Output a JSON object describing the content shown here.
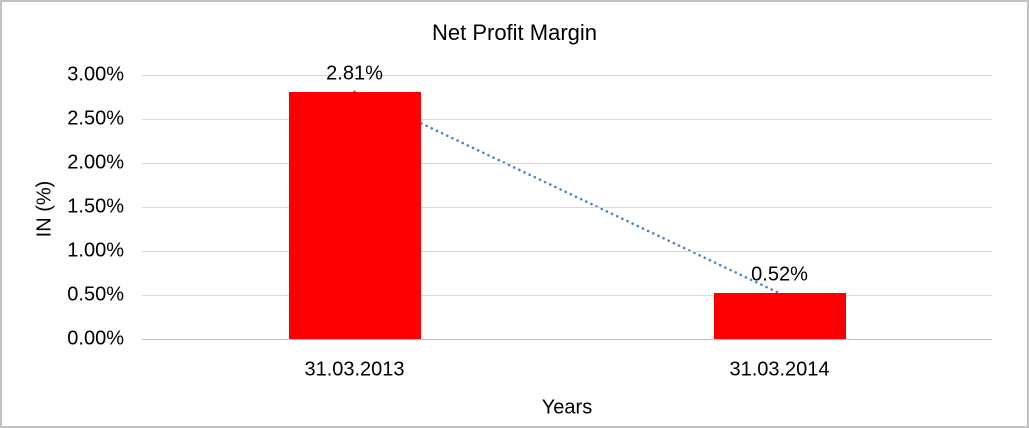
{
  "chart_data": {
    "type": "bar",
    "title": "Net Profit Margin",
    "xlabel": "Years",
    "ylabel": "IN (%)",
    "categories": [
      "31.03.2013",
      "31.03.2014"
    ],
    "values": [
      2.81,
      0.52
    ],
    "data_labels": [
      "2.81%",
      "0.52%"
    ],
    "yticks": [
      0,
      0.5,
      1,
      1.5,
      2,
      2.5,
      3
    ],
    "ytick_labels": [
      "0.00%",
      "0.50%",
      "1.00%",
      "1.50%",
      "2.00%",
      "2.50%",
      "3.00%"
    ],
    "ylim": [
      0,
      3
    ],
    "grid": "horizontal",
    "legend_position": "none",
    "bar_color": "#ff0000",
    "trendline": {
      "type": "linear",
      "style": "dotted",
      "color": "#4a86c8",
      "from_value": 2.81,
      "to_value": 0.52
    },
    "colors": {
      "gridline": "#d9d9d9",
      "zero_line": "#bfbfbf",
      "frame_border": "#c3c3c3",
      "text": "#000000",
      "background": "#ffffff"
    }
  }
}
